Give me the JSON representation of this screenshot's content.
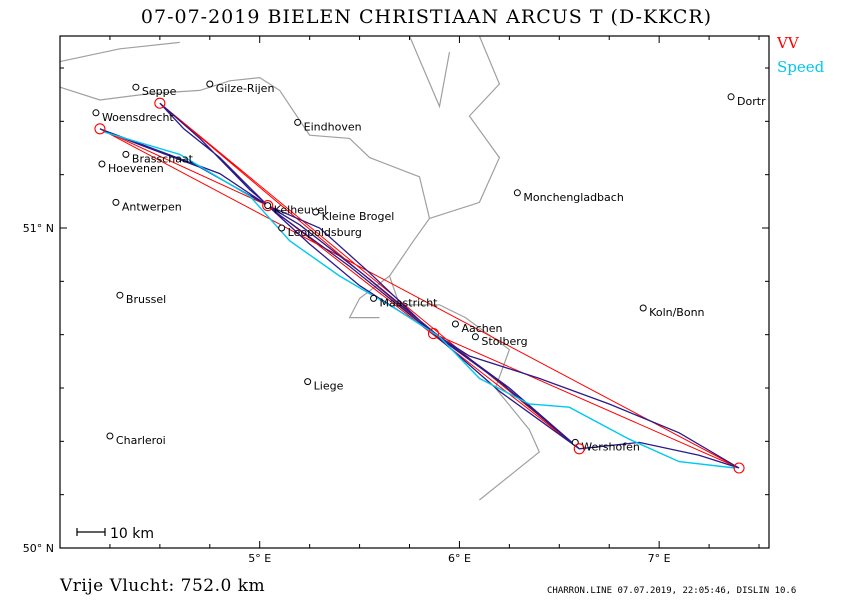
{
  "title": "07-07-2019   BIELEN CHRISTIAAN   ARCUS T (D-KKCR)",
  "legend": {
    "vv": {
      "label": "VV",
      "color": "#ff0000"
    },
    "speed": {
      "label": "Speed",
      "color": "#00c8f0"
    }
  },
  "distance_label": "Vrije Vlucht:  752.0 km",
  "footer": "CHARRON.LINE 07.07.2019, 22:05:46, DISLIN 10.6",
  "scale_bar": {
    "label": "10 km"
  },
  "axes": {
    "lon_min": 4.0,
    "lon_max": 7.55,
    "lat_min": 50.0,
    "lat_max": 51.6,
    "x_ticks": [
      {
        "value": 5,
        "label": "5° E"
      },
      {
        "value": 6,
        "label": "6° E"
      },
      {
        "value": 7,
        "label": "7° E"
      }
    ],
    "y_ticks": [
      {
        "value": 50,
        "label": "50° N"
      },
      {
        "value": 51,
        "label": "51° N"
      }
    ]
  },
  "cities": [
    {
      "name": "Seppe",
      "lon": 4.38,
      "lat": 51.44
    },
    {
      "name": "Gilze-Rijen",
      "lon": 4.75,
      "lat": 51.45
    },
    {
      "name": "Woensdrecht",
      "lon": 4.18,
      "lat": 51.36
    },
    {
      "name": "Eindhoven",
      "lon": 5.19,
      "lat": 51.33
    },
    {
      "name": "Brasschaat",
      "lon": 4.33,
      "lat": 51.23
    },
    {
      "name": "Hoevenen",
      "lon": 4.21,
      "lat": 51.2
    },
    {
      "name": "Dortr",
      "lon": 7.36,
      "lat": 51.41
    },
    {
      "name": "Monchengladbach",
      "lon": 6.29,
      "lat": 51.11
    },
    {
      "name": "Antwerpen",
      "lon": 4.28,
      "lat": 51.08
    },
    {
      "name": "Kelheuvel",
      "lon": 5.04,
      "lat": 51.07
    },
    {
      "name": "Kleine Brogel",
      "lon": 5.28,
      "lat": 51.05
    },
    {
      "name": "Leopoldsburg",
      "lon": 5.11,
      "lat": 51.0
    },
    {
      "name": "Brussel",
      "lon": 4.3,
      "lat": 50.79
    },
    {
      "name": "Maastricht",
      "lon": 5.57,
      "lat": 50.78
    },
    {
      "name": "Koln/Bonn",
      "lon": 6.92,
      "lat": 50.75
    },
    {
      "name": "Aachen",
      "lon": 5.98,
      "lat": 50.7
    },
    {
      "name": "Stolberg",
      "lon": 6.08,
      "lat": 50.66
    },
    {
      "name": "Liege",
      "lon": 5.24,
      "lat": 50.52
    },
    {
      "name": "Charleroi",
      "lon": 4.25,
      "lat": 50.35
    },
    {
      "name": "Wershofen",
      "lon": 6.58,
      "lat": 50.33
    }
  ],
  "turnpoints": [
    {
      "lon": 4.2,
      "lat": 51.31
    },
    {
      "lon": 4.5,
      "lat": 51.39
    },
    {
      "lon": 5.04,
      "lat": 51.07
    },
    {
      "lon": 5.87,
      "lat": 50.67
    },
    {
      "lon": 6.6,
      "lat": 50.31
    },
    {
      "lon": 7.4,
      "lat": 50.25
    }
  ],
  "task_line": [
    [
      4.2,
      51.31
    ],
    [
      7.4,
      50.25
    ],
    [
      5.87,
      50.67
    ],
    [
      4.5,
      51.39
    ],
    [
      6.6,
      50.31
    ],
    [
      5.04,
      51.07
    ],
    [
      4.2,
      51.31
    ]
  ],
  "flight_track": [
    [
      4.2,
      51.31
    ],
    [
      4.5,
      51.24
    ],
    [
      4.8,
      51.17
    ],
    [
      5.04,
      51.07
    ],
    [
      5.3,
      51.0
    ],
    [
      5.55,
      50.86
    ],
    [
      5.87,
      50.67
    ],
    [
      6.2,
      50.52
    ],
    [
      6.6,
      50.31
    ],
    [
      6.9,
      50.33
    ],
    [
      7.2,
      50.29
    ],
    [
      7.4,
      50.25
    ],
    [
      7.1,
      50.36
    ],
    [
      6.75,
      50.45
    ],
    [
      6.4,
      50.53
    ],
    [
      6.05,
      50.6
    ],
    [
      5.8,
      50.7
    ],
    [
      5.5,
      50.82
    ],
    [
      5.25,
      50.95
    ],
    [
      5.04,
      51.07
    ],
    [
      4.8,
      51.22
    ],
    [
      4.62,
      51.31
    ],
    [
      4.5,
      51.39
    ],
    [
      4.7,
      51.28
    ],
    [
      4.95,
      51.12
    ],
    [
      5.1,
      51.04
    ],
    [
      5.45,
      50.88
    ],
    [
      5.87,
      50.67
    ],
    [
      6.2,
      50.49
    ],
    [
      6.6,
      50.31
    ],
    [
      6.25,
      50.5
    ],
    [
      5.9,
      50.66
    ],
    [
      5.55,
      50.84
    ],
    [
      5.2,
      51.01
    ],
    [
      5.04,
      51.07
    ],
    [
      4.7,
      51.19
    ],
    [
      4.4,
      51.26
    ],
    [
      4.2,
      51.31
    ]
  ],
  "speed_track": [
    [
      4.22,
      51.3
    ],
    [
      4.6,
      51.23
    ],
    [
      4.95,
      51.1
    ],
    [
      5.15,
      50.96
    ],
    [
      5.4,
      50.85
    ],
    [
      5.7,
      50.74
    ],
    [
      5.9,
      50.66
    ],
    [
      6.1,
      50.53
    ],
    [
      6.35,
      50.45
    ],
    [
      6.55,
      50.44
    ],
    [
      6.85,
      50.34
    ],
    [
      7.1,
      50.27
    ],
    [
      7.38,
      50.25
    ]
  ],
  "border_lines": [
    [
      [
        4.0,
        51.44
      ],
      [
        4.2,
        51.4
      ],
      [
        4.45,
        51.42
      ],
      [
        4.7,
        51.43
      ],
      [
        4.85,
        51.46
      ],
      [
        5.0,
        51.47
      ],
      [
        5.1,
        51.43
      ],
      [
        5.25,
        51.29
      ],
      [
        5.45,
        51.28
      ],
      [
        5.55,
        51.22
      ],
      [
        5.8,
        51.16
      ],
      [
        5.85,
        51.03
      ],
      [
        5.77,
        50.96
      ],
      [
        5.65,
        50.85
      ],
      [
        5.7,
        50.76
      ],
      [
        5.9,
        50.76
      ],
      [
        6.03,
        50.72
      ],
      [
        6.25,
        50.62
      ],
      [
        6.18,
        50.5
      ],
      [
        6.35,
        50.37
      ],
      [
        6.4,
        50.3
      ],
      [
        6.1,
        50.15
      ]
    ],
    [
      [
        5.85,
        51.03
      ],
      [
        6.1,
        51.08
      ],
      [
        6.2,
        51.22
      ],
      [
        6.05,
        51.35
      ],
      [
        6.2,
        51.45
      ],
      [
        6.1,
        51.6
      ]
    ],
    [
      [
        5.75,
        51.6
      ],
      [
        5.9,
        51.38
      ],
      [
        5.95,
        51.55
      ]
    ],
    [
      [
        4.0,
        51.52
      ],
      [
        4.3,
        51.56
      ],
      [
        4.6,
        51.58
      ]
    ],
    [
      [
        5.65,
        50.85
      ],
      [
        5.5,
        50.78
      ],
      [
        5.45,
        50.72
      ],
      [
        5.6,
        50.72
      ]
    ]
  ]
}
